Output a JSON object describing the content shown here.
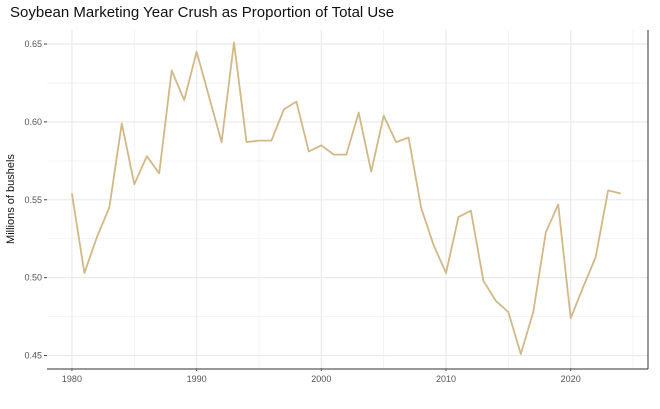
{
  "chart_data": {
    "type": "line",
    "title": "Soybean Marketing Year Crush as Proportion of Total Use",
    "xlabel": "",
    "ylabel": "Millions of bushels",
    "xlim": [
      1978,
      2026.2
    ],
    "ylim": [
      0.442,
      0.659
    ],
    "x_ticks": [
      1980,
      1990,
      2000,
      2010,
      2020
    ],
    "y_ticks": [
      0.45,
      0.5,
      0.55,
      0.6,
      0.65
    ],
    "y_tick_labels": [
      "0.45",
      "0.50",
      "0.55",
      "0.60",
      "0.65"
    ],
    "grid": true,
    "line_color": "#d2b886",
    "x": [
      1980,
      1981,
      1982,
      1983,
      1984,
      1985,
      1986,
      1987,
      1988,
      1989,
      1990,
      1991,
      1992,
      1993,
      1994,
      1995,
      1996,
      1997,
      1998,
      1999,
      2000,
      2001,
      2002,
      2003,
      2004,
      2005,
      2006,
      2007,
      2008,
      2009,
      2010,
      2011,
      2012,
      2013,
      2014,
      2015,
      2016,
      2017,
      2018,
      2019,
      2020,
      2021,
      2022,
      2023,
      2024
    ],
    "values": [
      0.554,
      0.503,
      0.526,
      0.545,
      0.599,
      0.56,
      0.578,
      0.567,
      0.633,
      0.614,
      0.645,
      0.616,
      0.587,
      0.651,
      0.587,
      0.588,
      0.588,
      0.608,
      0.613,
      0.581,
      0.585,
      0.579,
      0.579,
      0.606,
      0.568,
      0.604,
      0.587,
      0.59,
      0.545,
      0.521,
      0.503,
      0.539,
      0.543,
      0.498,
      0.485,
      0.478,
      0.451,
      0.478,
      0.529,
      0.547,
      0.474,
      0.494,
      0.513,
      0.556,
      0.554
    ]
  }
}
